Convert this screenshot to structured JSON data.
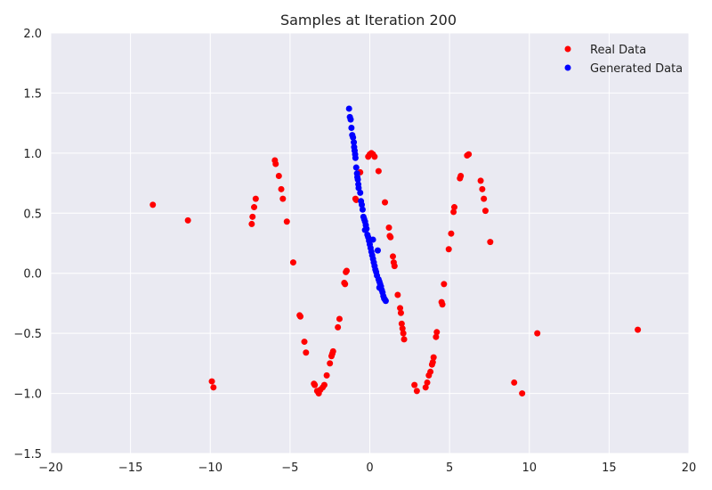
{
  "chart_data": {
    "type": "scatter",
    "title": "Samples at Iteration 200",
    "xlabel": "",
    "ylabel": "",
    "xlim": [
      -20,
      20
    ],
    "ylim": [
      -1.5,
      2.0
    ],
    "xticks": [
      -20,
      -15,
      -10,
      -5,
      0,
      5,
      10,
      15,
      20
    ],
    "yticks": [
      -1.5,
      -1.0,
      -0.5,
      0.0,
      0.5,
      1.0,
      1.5,
      2.0
    ],
    "xtick_labels": [
      "−20",
      "−15",
      "−10",
      "−5",
      "0",
      "5",
      "10",
      "15",
      "20"
    ],
    "ytick_labels": [
      "−1.5",
      "−1.0",
      "−0.5",
      "0.0",
      "0.5",
      "1.0",
      "1.5",
      "2.0"
    ],
    "grid": true,
    "legend_position": "top-right",
    "series": [
      {
        "name": "Real Data",
        "color": "#ff0000",
        "points": [
          [
            -13.6,
            0.57
          ],
          [
            -11.4,
            0.44
          ],
          [
            -9.9,
            -0.9
          ],
          [
            -9.8,
            -0.95
          ],
          [
            -7.4,
            0.41
          ],
          [
            -7.35,
            0.47
          ],
          [
            -7.25,
            0.55
          ],
          [
            -7.15,
            0.62
          ],
          [
            -5.95,
            0.94
          ],
          [
            -5.9,
            0.91
          ],
          [
            -5.7,
            0.81
          ],
          [
            -5.55,
            0.7
          ],
          [
            -5.45,
            0.62
          ],
          [
            -5.2,
            0.43
          ],
          [
            -4.8,
            0.09
          ],
          [
            -4.4,
            -0.35
          ],
          [
            -4.35,
            -0.36
          ],
          [
            -4.1,
            -0.57
          ],
          [
            -4.0,
            -0.66
          ],
          [
            -3.5,
            -0.92
          ],
          [
            -3.45,
            -0.93
          ],
          [
            -3.3,
            -0.98
          ],
          [
            -3.2,
            -1.0
          ],
          [
            -3.1,
            -0.97
          ],
          [
            -2.95,
            -0.95
          ],
          [
            -2.85,
            -0.93
          ],
          [
            -2.7,
            -0.85
          ],
          [
            -2.5,
            -0.75
          ],
          [
            -2.4,
            -0.69
          ],
          [
            -2.35,
            -0.67
          ],
          [
            -2.3,
            -0.65
          ],
          [
            -2.0,
            -0.45
          ],
          [
            -1.9,
            -0.38
          ],
          [
            -1.6,
            -0.08
          ],
          [
            -1.55,
            -0.09
          ],
          [
            -1.5,
            0.01
          ],
          [
            -1.45,
            0.02
          ],
          [
            -0.9,
            0.62
          ],
          [
            -0.85,
            0.61
          ],
          [
            -0.6,
            0.84
          ],
          [
            -0.1,
            0.97
          ],
          [
            0.0,
            0.99
          ],
          [
            0.1,
            1.0
          ],
          [
            0.2,
            0.99
          ],
          [
            0.3,
            0.97
          ],
          [
            0.55,
            0.85
          ],
          [
            0.95,
            0.59
          ],
          [
            1.2,
            0.38
          ],
          [
            1.25,
            0.31
          ],
          [
            1.3,
            0.3
          ],
          [
            1.45,
            0.14
          ],
          [
            1.5,
            0.09
          ],
          [
            1.55,
            0.06
          ],
          [
            1.75,
            -0.18
          ],
          [
            1.9,
            -0.29
          ],
          [
            1.95,
            -0.33
          ],
          [
            2.0,
            -0.42
          ],
          [
            2.05,
            -0.46
          ],
          [
            2.1,
            -0.5
          ],
          [
            2.15,
            -0.55
          ],
          [
            2.8,
            -0.93
          ],
          [
            2.95,
            -0.98
          ],
          [
            3.5,
            -0.95
          ],
          [
            3.6,
            -0.91
          ],
          [
            3.7,
            -0.85
          ],
          [
            3.8,
            -0.82
          ],
          [
            3.9,
            -0.76
          ],
          [
            3.95,
            -0.74
          ],
          [
            4.0,
            -0.7
          ],
          [
            4.15,
            -0.53
          ],
          [
            4.2,
            -0.49
          ],
          [
            4.5,
            -0.24
          ],
          [
            4.55,
            -0.26
          ],
          [
            4.65,
            -0.09
          ],
          [
            4.95,
            0.2
          ],
          [
            5.1,
            0.33
          ],
          [
            5.25,
            0.51
          ],
          [
            5.3,
            0.55
          ],
          [
            5.65,
            0.79
          ],
          [
            5.7,
            0.81
          ],
          [
            6.1,
            0.98
          ],
          [
            6.2,
            0.99
          ],
          [
            6.95,
            0.77
          ],
          [
            7.05,
            0.7
          ],
          [
            7.15,
            0.62
          ],
          [
            7.25,
            0.52
          ],
          [
            7.55,
            0.26
          ],
          [
            9.05,
            -0.91
          ],
          [
            9.55,
            -1.0
          ],
          [
            10.5,
            -0.5
          ],
          [
            16.8,
            -0.47
          ]
        ]
      },
      {
        "name": "Generated Data",
        "color": "#0000ff",
        "points": [
          [
            -1.3,
            1.37
          ],
          [
            -1.25,
            1.3
          ],
          [
            -1.2,
            1.28
          ],
          [
            -1.15,
            1.21
          ],
          [
            -1.1,
            1.15
          ],
          [
            -1.05,
            1.13
          ],
          [
            -1.0,
            1.09
          ],
          [
            -0.98,
            1.05
          ],
          [
            -0.95,
            1.02
          ],
          [
            -0.92,
            0.99
          ],
          [
            -0.9,
            0.96
          ],
          [
            -0.85,
            0.88
          ],
          [
            -0.8,
            0.83
          ],
          [
            -0.78,
            0.8
          ],
          [
            -0.75,
            0.78
          ],
          [
            -0.72,
            0.74
          ],
          [
            -0.7,
            0.71
          ],
          [
            -0.6,
            0.67
          ],
          [
            -0.55,
            0.6
          ],
          [
            -0.5,
            0.57
          ],
          [
            -0.45,
            0.53
          ],
          [
            -0.4,
            0.47
          ],
          [
            -0.35,
            0.45
          ],
          [
            -0.3,
            0.43
          ],
          [
            -0.25,
            0.4
          ],
          [
            -0.2,
            0.37
          ],
          [
            -0.15,
            0.32
          ],
          [
            -0.1,
            0.3
          ],
          [
            -0.05,
            0.27
          ],
          [
            0.0,
            0.24
          ],
          [
            0.05,
            0.21
          ],
          [
            0.1,
            0.18
          ],
          [
            0.15,
            0.15
          ],
          [
            0.2,
            0.12
          ],
          [
            0.25,
            0.09
          ],
          [
            0.3,
            0.06
          ],
          [
            0.35,
            0.03
          ],
          [
            0.4,
            0.01
          ],
          [
            0.45,
            -0.02
          ],
          [
            0.5,
            0.19
          ],
          [
            0.55,
            -0.05
          ],
          [
            0.6,
            -0.07
          ],
          [
            0.65,
            -0.09
          ],
          [
            0.7,
            -0.11
          ],
          [
            0.75,
            -0.14
          ],
          [
            0.8,
            -0.16
          ],
          [
            0.85,
            -0.19
          ],
          [
            0.9,
            -0.21
          ],
          [
            0.95,
            -0.22
          ],
          [
            1.0,
            -0.23
          ],
          [
            0.2,
            0.28
          ],
          [
            -0.3,
            0.36
          ],
          [
            0.6,
            -0.12
          ]
        ]
      }
    ]
  }
}
